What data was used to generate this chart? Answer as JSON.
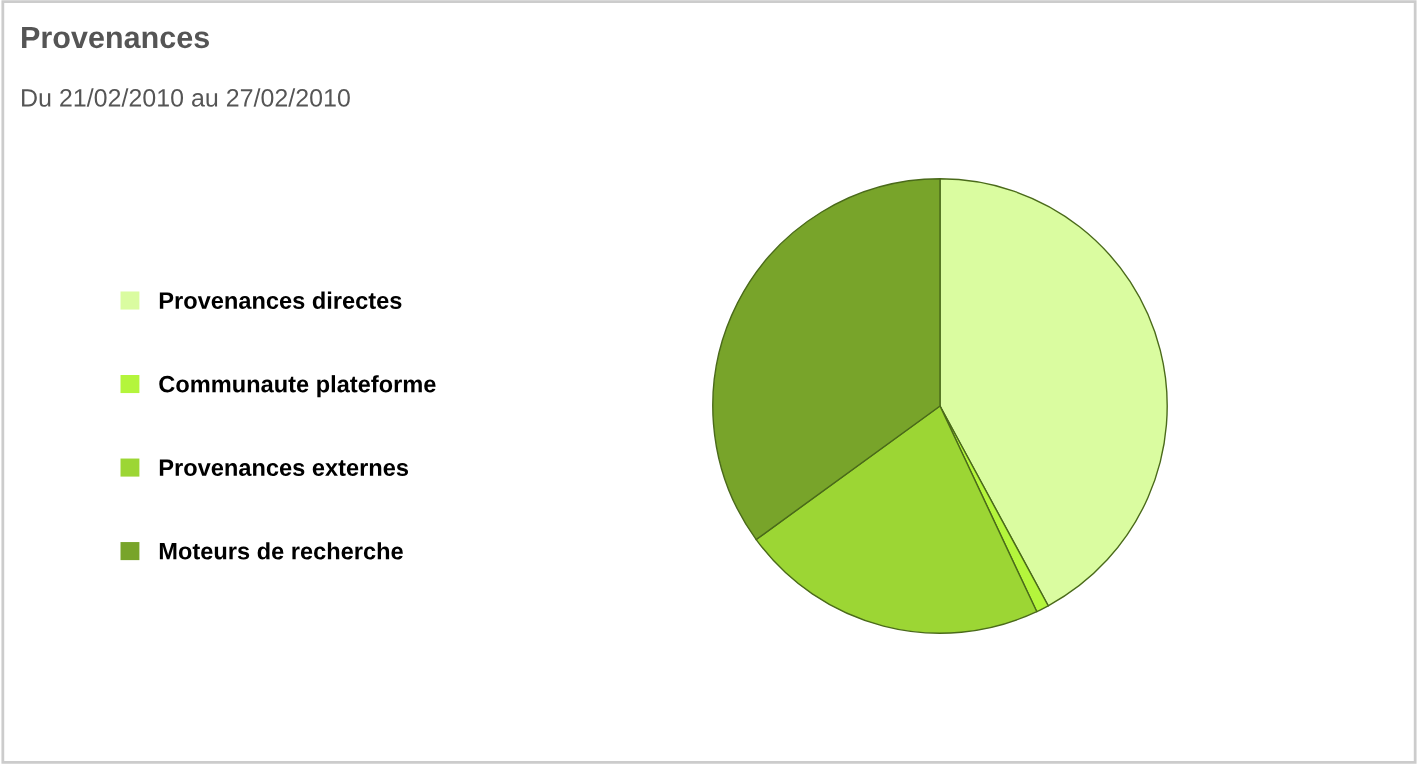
{
  "chart_data": {
    "type": "pie",
    "title": "Provenances",
    "subtitle": "Du 21/02/2010 au 27/02/2010",
    "categories": [
      "Provenances directes",
      "Communaute plateforme",
      "Provenances externes",
      "Moteurs de recherche"
    ],
    "values": [
      42.1,
      0.9,
      22,
      35
    ],
    "colors": [
      "#dafca0",
      "#b4f53c",
      "#9cd634",
      "#78a42a"
    ],
    "legend": "left"
  }
}
